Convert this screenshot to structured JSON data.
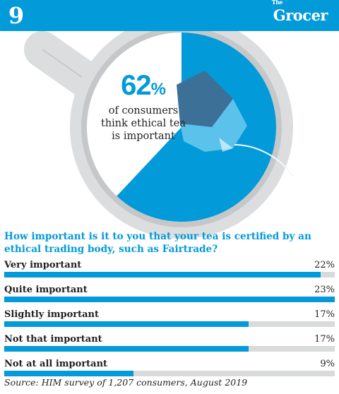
{
  "header": {
    "issue_number": "9",
    "brand_small": "The",
    "brand": "Grocer",
    "band_color": "#029ad8"
  },
  "headline": {
    "percent": "62",
    "percent_sign": "%",
    "text_line1": "of consumers",
    "text_line2": "think ethical tea",
    "text_line3": "is important"
  },
  "illustration": {
    "description_icon": "tea-mug-icon",
    "fill_fraction": 0.62
  },
  "chart_data": {
    "type": "bar",
    "orientation": "horizontal",
    "title": "How important is it to you that your tea is certified by an ethical trading body, such as Fairtrade?",
    "categories": [
      "Very important",
      "Quite important",
      "Slightly important",
      "Not that important",
      " Not at all important"
    ],
    "values": [
      22,
      23,
      17,
      17,
      9
    ],
    "value_labels": [
      "22%",
      "23%",
      "17%",
      "17%",
      "9%"
    ],
    "xlim": [
      0,
      23
    ],
    "unit": "%",
    "bar_color": "#029ad8",
    "track_color": "#d9dadb"
  },
  "footer": {
    "source": "Source: HIM survey of 1,207 consumers, August 2019"
  }
}
